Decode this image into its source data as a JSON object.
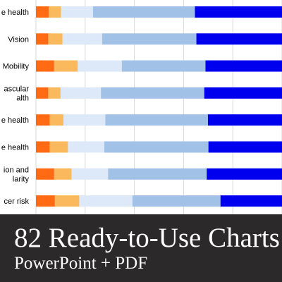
{
  "chart_data": {
    "type": "bar",
    "orientation": "horizontal",
    "stacked": true,
    "normalized": true,
    "categories": [
      [
        "e health"
      ],
      [
        "Vision"
      ],
      [
        "Mobility"
      ],
      [
        "ascular",
        "alth"
      ],
      [
        "e health"
      ],
      [
        "e health"
      ],
      [
        "ion and",
        "larity"
      ],
      [
        "cer risk"
      ]
    ],
    "series": [
      {
        "color": "#ff6a13",
        "values": [
          5.2,
          5.0,
          7.4,
          5.0,
          5.6,
          5.6,
          7.4,
          7.7
        ]
      },
      {
        "color": "#fbb95d",
        "values": [
          5.0,
          5.8,
          9.6,
          5.0,
          5.6,
          7.4,
          7.1,
          9.9
        ]
      },
      {
        "color": "#dde9f8",
        "values": [
          13.0,
          16.1,
          17.9,
          16.4,
          17.0,
          14.8,
          14.8,
          21.6
        ]
      },
      {
        "color": "#a2c1e7",
        "values": [
          41.4,
          38.3,
          34.0,
          42.0,
          41.7,
          42.3,
          40.1,
          35.8
        ]
      },
      {
        "color": "#0000ef",
        "values": [
          35.4,
          34.8,
          31.1,
          31.6,
          30.1,
          29.9,
          30.6,
          25.0
        ]
      }
    ],
    "xlim": [
      0,
      100
    ],
    "grid": true
  },
  "banner": {
    "title": "82 Ready-to-Use Charts",
    "subtitle": "PowerPoint + PDF"
  }
}
